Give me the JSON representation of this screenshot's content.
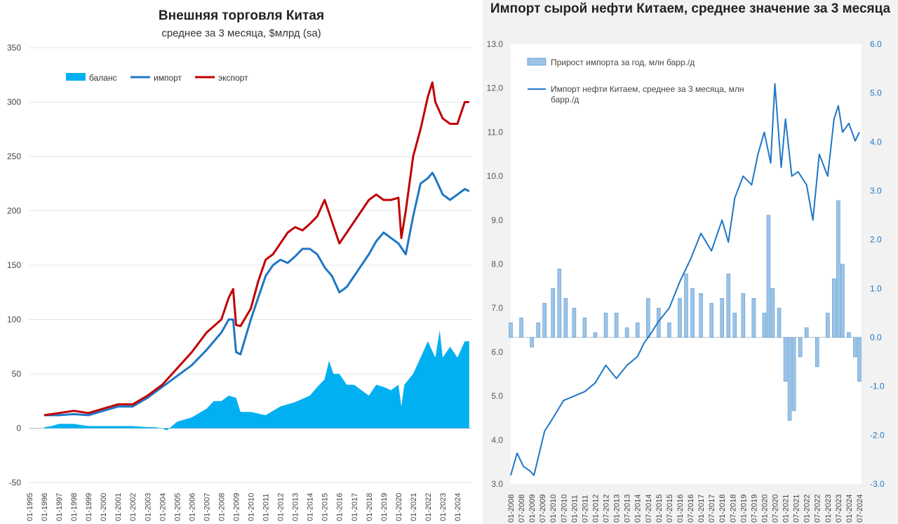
{
  "chart_data": [
    {
      "type": "line",
      "title": "Внешняя торговля Китая",
      "subtitle": "среднее за 3 месяца, $млрд (sa)",
      "ylim": [
        -50,
        350
      ],
      "yticks": [
        "-50",
        "0",
        "50",
        "100",
        "150",
        "200",
        "250",
        "300",
        "350"
      ],
      "xticks": [
        "01-1995",
        "01-1996",
        "01-1997",
        "01-1998",
        "01-1999",
        "01-2000",
        "01-2001",
        "01-2002",
        "01-2003",
        "01-2004",
        "01-2005",
        "01-2006",
        "01-2007",
        "01-2008",
        "01-2009",
        "01-2010",
        "01-2011",
        "01-2012",
        "01-2013",
        "01-2014",
        "01-2015",
        "01-2016",
        "01-2017",
        "01-2018",
        "01-2019",
        "01-2020",
        "01-2021",
        "01-2022",
        "01-2023",
        "01-2024"
      ],
      "grid": true,
      "legend_position": "top-left",
      "series": [
        {
          "name": "баланс",
          "type": "area",
          "color": "#00b0f0",
          "x": [
            1996.0,
            1996.5,
            1997.0,
            1998.0,
            1998.5,
            1999.0,
            2000.0,
            2001.0,
            2002.0,
            2003.0,
            2003.5,
            2004.0,
            2004.3,
            2005.0,
            2005.5,
            2006.0,
            2007.0,
            2007.5,
            2008.0,
            2008.5,
            2009.0,
            2009.3,
            2010.0,
            2011.0,
            2012.0,
            2013.0,
            2014.0,
            2014.5,
            2015.0,
            2015.3,
            2015.6,
            2016.0,
            2016.5,
            2017.0,
            2017.5,
            2018.0,
            2018.5,
            2019.0,
            2019.5,
            2020.0,
            2020.2,
            2020.4,
            2020.7,
            2021.0,
            2021.5,
            2022.0,
            2022.5,
            2022.8,
            2023.0,
            2023.5,
            2024.0,
            2024.5,
            2024.8
          ],
          "values": [
            1,
            2,
            4,
            4,
            3,
            2,
            2,
            2,
            2,
            1,
            1,
            0,
            -2,
            6,
            8,
            10,
            18,
            25,
            25,
            30,
            28,
            15,
            15,
            12,
            20,
            24,
            30,
            38,
            45,
            62,
            50,
            50,
            40,
            40,
            35,
            30,
            40,
            38,
            35,
            40,
            20,
            40,
            45,
            50,
            65,
            80,
            65,
            90,
            65,
            75,
            65,
            80,
            80
          ]
        },
        {
          "name": "импорт",
          "type": "line",
          "color": "#1f77c4",
          "x": [
            1996.0,
            1997.0,
            1998.0,
            1999.0,
            2000.0,
            2001.0,
            2002.0,
            2003.0,
            2004.0,
            2005.0,
            2006.0,
            2007.0,
            2008.0,
            2008.5,
            2008.8,
            2009.0,
            2009.3,
            2010.0,
            2010.5,
            2011.0,
            2011.5,
            2012.0,
            2012.5,
            2013.0,
            2013.5,
            2014.0,
            2014.5,
            2015.0,
            2015.5,
            2016.0,
            2016.5,
            2017.0,
            2017.5,
            2018.0,
            2018.5,
            2019.0,
            2019.5,
            2020.0,
            2020.5,
            2021.0,
            2021.5,
            2022.0,
            2022.3,
            2022.5,
            2023.0,
            2023.5,
            2024.0,
            2024.5,
            2024.8
          ],
          "values": [
            12,
            12,
            13,
            12,
            16,
            20,
            20,
            28,
            38,
            48,
            58,
            72,
            88,
            100,
            100,
            70,
            68,
            100,
            120,
            140,
            150,
            155,
            152,
            158,
            165,
            165,
            160,
            148,
            140,
            125,
            130,
            140,
            150,
            160,
            172,
            180,
            175,
            170,
            160,
            195,
            225,
            230,
            235,
            230,
            215,
            210,
            215,
            220,
            218
          ]
        },
        {
          "name": "экспорт",
          "type": "line",
          "color": "#c00000",
          "x": [
            1996.0,
            1997.0,
            1998.0,
            1999.0,
            2000.0,
            2001.0,
            2002.0,
            2003.0,
            2004.0,
            2005.0,
            2006.0,
            2007.0,
            2008.0,
            2008.5,
            2008.8,
            2009.0,
            2009.3,
            2010.0,
            2010.5,
            2011.0,
            2011.5,
            2012.0,
            2012.5,
            2013.0,
            2013.5,
            2014.0,
            2014.5,
            2015.0,
            2015.5,
            2016.0,
            2016.5,
            2017.0,
            2017.5,
            2018.0,
            2018.5,
            2019.0,
            2019.5,
            2020.0,
            2020.2,
            2020.5,
            2021.0,
            2021.5,
            2022.0,
            2022.3,
            2022.5,
            2023.0,
            2023.5,
            2024.0,
            2024.5,
            2024.8
          ],
          "values": [
            12,
            14,
            16,
            14,
            18,
            22,
            22,
            30,
            40,
            55,
            70,
            88,
            100,
            120,
            128,
            95,
            94,
            110,
            135,
            155,
            160,
            170,
            180,
            185,
            182,
            188,
            195,
            210,
            190,
            170,
            180,
            190,
            200,
            210,
            215,
            210,
            210,
            212,
            175,
            200,
            250,
            275,
            305,
            318,
            300,
            285,
            280,
            280,
            300,
            300
          ]
        }
      ]
    },
    {
      "type": "bar+line",
      "title": "Импорт сырой нефти Китаем, среднее значение за 3 месяца",
      "ylim_left": [
        3.0,
        13.0
      ],
      "ylim_right": [
        -3.0,
        6.0
      ],
      "yticks_left": [
        "3.0",
        "4.0",
        "5.0",
        "6.0",
        "7.0",
        "8.0",
        "9.0",
        "10.0",
        "11.0",
        "12.0",
        "13.0"
      ],
      "yticks_right": [
        "-3.0",
        "-2.0",
        "-1.0",
        "0.0",
        "1.0",
        "2.0",
        "3.0",
        "4.0",
        "5.0",
        "6.0"
      ],
      "xticks": [
        "01-2008",
        "07-2008",
        "01-2009",
        "07-2009",
        "01-2010",
        "07-2010",
        "01-2011",
        "07-2011",
        "01-2012",
        "07-2012",
        "01-2013",
        "07-2013",
        "01-2014",
        "07-2014",
        "01-2015",
        "07-2015",
        "01-2016",
        "07-2016",
        "01-2017",
        "07-2017",
        "01-2018",
        "07-2018",
        "01-2019",
        "07-2019",
        "01-2020",
        "07-2020",
        "01-2021",
        "07-2021",
        "01-2022",
        "07-2022",
        "01-2023",
        "07-2023",
        "01-2024",
        "07-2024"
      ],
      "legend_position": "top-left",
      "series": [
        {
          "name": "Прирост импорта за год, млн барр./д",
          "type": "bar",
          "axis": "right",
          "color": "#9dc3e6",
          "x": [
            2008.0,
            2008.5,
            2009.0,
            2009.3,
            2009.6,
            2010.0,
            2010.3,
            2010.6,
            2011.0,
            2011.5,
            2012.0,
            2012.5,
            2013.0,
            2013.5,
            2014.0,
            2014.5,
            2015.0,
            2015.5,
            2016.0,
            2016.3,
            2016.6,
            2017.0,
            2017.5,
            2018.0,
            2018.3,
            2018.6,
            2019.0,
            2019.5,
            2020.0,
            2020.2,
            2020.4,
            2020.7,
            2021.0,
            2021.2,
            2021.4,
            2021.7,
            2022.0,
            2022.5,
            2023.0,
            2023.3,
            2023.5,
            2023.7,
            2024.0,
            2024.3,
            2024.5
          ],
          "values": [
            0.3,
            0.4,
            -0.2,
            0.3,
            0.7,
            1.0,
            1.4,
            0.8,
            0.6,
            0.4,
            0.1,
            0.5,
            0.5,
            0.2,
            0.3,
            0.8,
            0.6,
            0.3,
            0.8,
            1.3,
            1.0,
            0.9,
            0.7,
            0.8,
            1.3,
            0.5,
            0.9,
            0.8,
            0.5,
            2.5,
            1.0,
            0.6,
            -0.9,
            -1.7,
            -1.5,
            -0.4,
            0.2,
            -0.6,
            0.5,
            1.2,
            2.8,
            1.5,
            0.1,
            -0.4,
            -0.9
          ]
        },
        {
          "name": "Импорт нефти Китаем, среднее за 3 месяца, млн барр./д",
          "type": "line",
          "axis": "left",
          "color": "#1f77c4",
          "x": [
            2008.0,
            2008.3,
            2008.6,
            2008.9,
            2009.1,
            2009.4,
            2009.6,
            2010.0,
            2010.5,
            2011.0,
            2011.5,
            2012.0,
            2012.5,
            2013.0,
            2013.5,
            2014.0,
            2014.3,
            2014.6,
            2015.0,
            2015.5,
            2016.0,
            2016.5,
            2017.0,
            2017.5,
            2018.0,
            2018.3,
            2018.6,
            2019.0,
            2019.4,
            2019.7,
            2020.0,
            2020.3,
            2020.5,
            2020.8,
            2021.0,
            2021.3,
            2021.6,
            2022.0,
            2022.3,
            2022.6,
            2023.0,
            2023.3,
            2023.5,
            2023.7,
            2024.0,
            2024.3,
            2024.5
          ],
          "values": [
            3.2,
            3.7,
            3.4,
            3.3,
            3.2,
            3.8,
            4.2,
            4.5,
            4.9,
            5.0,
            5.1,
            5.3,
            5.7,
            5.4,
            5.7,
            5.9,
            6.2,
            6.4,
            6.7,
            7.0,
            7.6,
            8.1,
            8.7,
            8.3,
            9.0,
            8.5,
            9.5,
            10.0,
            9.8,
            10.5,
            11.0,
            10.3,
            12.1,
            10.2,
            11.3,
            10.0,
            10.1,
            9.8,
            9.0,
            10.5,
            10.0,
            11.3,
            11.6,
            11.0,
            11.2,
            10.8,
            11.0
          ]
        }
      ]
    }
  ]
}
